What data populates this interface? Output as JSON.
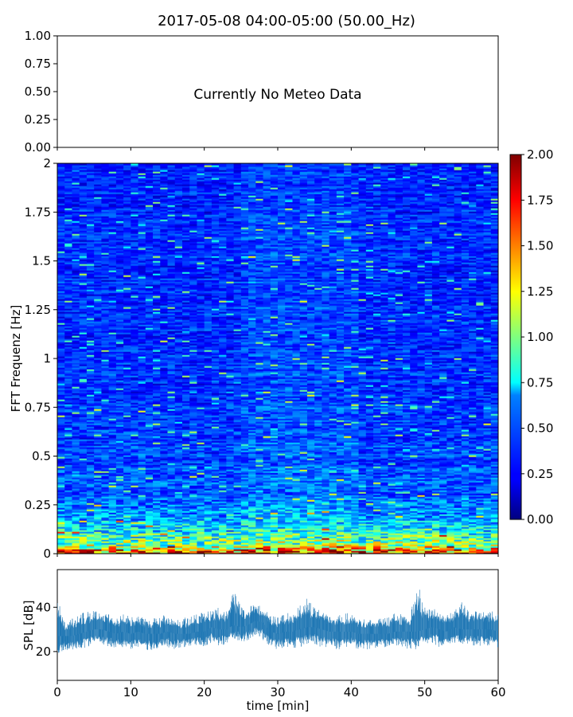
{
  "figure": {
    "title": "2017-05-08 04:00-05:00 (50.00_Hz)"
  },
  "chart_data": [
    {
      "panel": "meteo",
      "type": "line",
      "ylim": [
        0,
        1
      ],
      "yticks": [
        "0.00",
        "0.25",
        "0.50",
        "0.75",
        "1.00"
      ],
      "xlim": [
        0,
        60
      ],
      "message": "Currently No Meteo Data",
      "series": []
    },
    {
      "panel": "spectrogram",
      "type": "heatmap",
      "ylabel": "FFT Frequenz [Hz]",
      "xlim": [
        0,
        60
      ],
      "ylim": [
        0,
        2
      ],
      "yticks": [
        "0",
        "0.25",
        "0.5",
        "0.75",
        "1",
        "1.25",
        "1.5",
        "1.75",
        "2"
      ],
      "colorbar": {
        "range": [
          0,
          2
        ],
        "ticks": [
          "0.00",
          "0.25",
          "0.50",
          "0.75",
          "1.00",
          "1.25",
          "1.50",
          "1.75",
          "2.00"
        ],
        "colormap": "jet"
      },
      "frequency_profile": {
        "freq_hz": [
          0.0,
          0.02,
          0.05,
          0.1,
          0.15,
          0.2,
          0.25,
          0.3,
          0.5,
          0.75,
          1.0,
          1.5,
          2.0
        ],
        "typical_value": [
          1.8,
          1.4,
          1.0,
          0.85,
          0.65,
          0.55,
          0.5,
          0.42,
          0.38,
          0.35,
          0.33,
          0.32,
          0.31
        ]
      }
    },
    {
      "panel": "spl",
      "type": "line",
      "xlabel": "time [min]",
      "ylabel": "SPL [dB]",
      "xlim": [
        0,
        60
      ],
      "ylim": [
        7,
        57
      ],
      "yticks": [
        20,
        40
      ],
      "xticks": [
        0,
        10,
        20,
        30,
        40,
        50,
        60
      ],
      "color": "#1f77b4",
      "series": [
        {
          "x": [
            0,
            1,
            2,
            3,
            4,
            5,
            6,
            7,
            8,
            9,
            10,
            11,
            12,
            13,
            14,
            15,
            16,
            17,
            18,
            19,
            20,
            21,
            22,
            23,
            24,
            25,
            26,
            27,
            28,
            29,
            30,
            31,
            32,
            33,
            34,
            35,
            36,
            37,
            38,
            39,
            40,
            41,
            42,
            43,
            44,
            45,
            46,
            47,
            48,
            49,
            50,
            51,
            52,
            53,
            54,
            55,
            56,
            57,
            58,
            59,
            60
          ],
          "low": [
            18,
            21,
            20,
            21,
            22,
            23,
            23,
            22,
            21,
            22,
            21,
            22,
            21,
            20,
            22,
            22,
            21,
            22,
            22,
            23,
            22,
            24,
            22,
            23,
            26,
            24,
            25,
            27,
            25,
            22,
            21,
            22,
            21,
            22,
            23,
            23,
            22,
            21,
            21,
            21,
            22,
            21,
            21,
            21,
            22,
            22,
            23,
            21,
            21,
            21,
            23,
            24,
            22,
            22,
            24,
            23,
            22,
            23,
            22,
            23,
            21
          ],
          "mid": [
            27,
            27,
            27,
            28,
            29,
            30,
            30,
            29,
            28,
            29,
            28,
            29,
            28,
            28,
            28,
            29,
            28,
            28,
            28,
            29,
            29,
            31,
            30,
            30,
            32,
            31,
            32,
            34,
            33,
            29,
            28,
            29,
            29,
            30,
            31,
            31,
            30,
            29,
            29,
            29,
            29,
            28,
            28,
            28,
            28,
            28,
            29,
            29,
            29,
            29,
            30,
            31,
            30,
            29,
            31,
            30,
            30,
            30,
            30,
            30,
            29
          ],
          "high": [
            45,
            34,
            35,
            37,
            38,
            39,
            38,
            37,
            35,
            37,
            36,
            36,
            35,
            35,
            36,
            37,
            35,
            35,
            36,
            37,
            38,
            39,
            40,
            38,
            48,
            40,
            40,
            42,
            40,
            36,
            36,
            37,
            38,
            41,
            44,
            40,
            38,
            36,
            36,
            37,
            38,
            36,
            35,
            34,
            35,
            36,
            38,
            37,
            36,
            52,
            40,
            40,
            38,
            37,
            38,
            43,
            38,
            40,
            38,
            39,
            37
          ]
        }
      ]
    }
  ]
}
